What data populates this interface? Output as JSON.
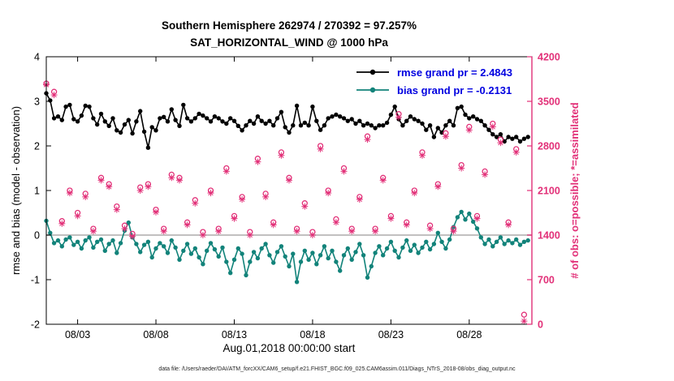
{
  "figure": {
    "title": "Southern Hemisphere 262974 / 270392 = 97.257%",
    "subtitle": "SAT_HORIZONTAL_WIND @ 1000 hPa",
    "xlabel": "Aug.01,2018 00:00:00 start",
    "ylabel_left": "rmse and bias (model - observation)",
    "ylabel_right": "# of obs: o=possible; *=assimilated",
    "caption": "data file: /Users/raeder/DAI/ATM_forcXX/CAM6_setup/f.e21.FHIST_BGC.f09_025.CAM6assim.011/Diags_NTrS_2018-08/obs_diag_output.nc",
    "legend_text_color": "#0000e0",
    "legend": [
      {
        "label": "rmse grand pr = 2.4843",
        "color": "#000000"
      },
      {
        "label": "bias grand pr = -0.2131",
        "color": "#12837a"
      }
    ]
  },
  "chart_data": {
    "type": "line",
    "title": "Southern Hemisphere 262974 / 270392 = 97.257%",
    "subtitle": "SAT_HORIZONTAL_WIND @ 1000 hPa",
    "grid": false,
    "legend_position": "top-right-inside",
    "x_axis": {
      "label": "Aug.01,2018 00:00:00 start",
      "start_day": 1,
      "end_day": 32,
      "ticks": [
        {
          "day": 3,
          "label": "08/03"
        },
        {
          "day": 8,
          "label": "08/08"
        },
        {
          "day": 13,
          "label": "08/13"
        },
        {
          "day": 18,
          "label": "08/18"
        },
        {
          "day": 23,
          "label": "08/23"
        },
        {
          "day": 28,
          "label": "08/28"
        }
      ]
    },
    "y_left": {
      "label": "rmse and bias (model - observation)",
      "min": -2,
      "max": 4,
      "ticks": [
        4,
        3,
        2,
        1,
        0,
        -1,
        -2
      ],
      "color": "#000000"
    },
    "y_right": {
      "label": "# of obs: o=possible; *=assimilated",
      "min": 0,
      "max": 4200,
      "ticks": [
        4200,
        3500,
        2800,
        2100,
        1400,
        700,
        0
      ],
      "color": "#e23078"
    },
    "zero_line": {
      "y": 0,
      "color": "#c2c0c0"
    },
    "series": [
      {
        "name": "rmse",
        "axis": "left",
        "color": "#000000",
        "marker": "filled-circle",
        "grand_mean": 2.4843,
        "x_start_day": 1,
        "x_step_days": 0.25,
        "values": [
          3.18,
          3.02,
          2.62,
          2.66,
          2.58,
          2.88,
          2.92,
          2.6,
          2.55,
          2.68,
          2.9,
          2.88,
          2.62,
          2.48,
          2.72,
          2.55,
          2.45,
          2.62,
          2.35,
          2.3,
          2.48,
          2.58,
          2.28,
          2.55,
          2.78,
          2.32,
          1.96,
          2.42,
          2.35,
          2.62,
          2.65,
          2.55,
          2.82,
          2.58,
          2.45,
          2.92,
          2.62,
          2.55,
          2.62,
          2.72,
          2.68,
          2.62,
          2.55,
          2.66,
          2.62,
          2.55,
          2.5,
          2.62,
          2.56,
          2.45,
          2.35,
          2.46,
          2.56,
          2.5,
          2.66,
          2.56,
          2.5,
          2.56,
          2.46,
          2.62,
          2.76,
          2.42,
          2.3,
          2.46,
          2.9,
          2.46,
          2.52,
          2.46,
          2.88,
          2.56,
          2.36,
          2.46,
          2.62,
          2.66,
          2.7,
          2.66,
          2.62,
          2.56,
          2.6,
          2.5,
          2.56,
          2.46,
          2.5,
          2.46,
          2.4,
          2.46,
          2.46,
          2.52,
          2.7,
          2.88,
          2.6,
          2.46,
          2.56,
          2.66,
          2.6,
          2.56,
          2.5,
          2.36,
          2.46,
          2.2,
          2.4,
          2.3,
          2.46,
          2.56,
          2.46,
          2.85,
          2.88,
          2.7,
          2.62,
          2.66,
          2.6,
          2.56,
          2.46,
          2.36,
          2.26,
          2.2,
          2.26,
          2.1,
          2.2,
          2.16,
          2.2,
          2.1,
          2.16,
          2.2
        ]
      },
      {
        "name": "bias",
        "axis": "left",
        "color": "#12837a",
        "marker": "filled-circle",
        "grand_mean": -0.2131,
        "x_start_day": 1,
        "x_step_days": 0.25,
        "values": [
          0.32,
          0.05,
          -0.18,
          -0.12,
          -0.25,
          -0.1,
          -0.05,
          -0.22,
          -0.15,
          -0.3,
          -0.12,
          -0.05,
          -0.28,
          -0.15,
          -0.1,
          -0.35,
          -0.2,
          -0.12,
          -0.4,
          -0.18,
          0.1,
          0.28,
          -0.05,
          -0.2,
          -0.38,
          -0.22,
          -0.15,
          -0.5,
          -0.3,
          -0.18,
          -0.25,
          -0.4,
          -0.12,
          -0.28,
          -0.55,
          -0.35,
          -0.2,
          -0.42,
          -0.3,
          -0.5,
          -0.65,
          -0.35,
          -0.18,
          -0.32,
          -0.48,
          -0.28,
          -0.6,
          -0.85,
          -0.55,
          -0.3,
          -0.42,
          -0.9,
          -0.6,
          -0.38,
          -0.52,
          -0.3,
          -0.2,
          -0.45,
          -0.62,
          -0.38,
          -0.25,
          -0.48,
          -0.7,
          -0.42,
          -1.05,
          -0.6,
          -0.35,
          -0.55,
          -0.4,
          -0.65,
          -0.45,
          -0.25,
          -0.52,
          -0.35,
          -0.6,
          -0.8,
          -0.45,
          -0.3,
          -0.55,
          -0.38,
          -0.2,
          -0.45,
          -0.95,
          -0.7,
          -0.4,
          -0.25,
          -0.45,
          -0.3,
          -0.15,
          -0.35,
          -0.5,
          -0.28,
          -0.12,
          -0.35,
          -0.22,
          -0.4,
          -0.28,
          -0.15,
          -0.32,
          -0.2,
          0.05,
          -0.15,
          -0.3,
          -0.1,
          0.18,
          0.4,
          0.52,
          0.35,
          0.48,
          0.3,
          0.15,
          -0.05,
          -0.2,
          -0.1,
          -0.25,
          -0.15,
          -0.05,
          -0.2,
          -0.12,
          -0.18,
          -0.1,
          -0.22,
          -0.15,
          -0.12
        ]
      },
      {
        "name": "possible_obs",
        "axis": "right",
        "color": "#e23078",
        "marker": "open-circle",
        "x_start_day": 1,
        "x_step_days": 0.5,
        "values": [
          3780,
          3650,
          1620,
          2100,
          1750,
          2050,
          1500,
          2300,
          2200,
          1850,
          1550,
          1420,
          2150,
          2200,
          1800,
          1500,
          2350,
          2300,
          1600,
          1950,
          1450,
          2100,
          1500,
          2450,
          1700,
          2000,
          1450,
          2600,
          2050,
          1600,
          2700,
          2300,
          1500,
          1900,
          1450,
          2800,
          2100,
          1650,
          2450,
          1500,
          2000,
          2950,
          1500,
          2300,
          1700,
          3300,
          1600,
          2100,
          2700,
          1550,
          2200,
          3000,
          1500,
          2500,
          3100,
          1700,
          2400,
          3150,
          2900,
          1600,
          2750,
          150
        ]
      },
      {
        "name": "assimilated_obs",
        "axis": "right",
        "color": "#e23078",
        "marker": "asterisk",
        "x_start_day": 1,
        "x_step_days": 0.5,
        "values": [
          3760,
          3600,
          1580,
          2060,
          1700,
          2000,
          1460,
          2260,
          2160,
          1800,
          1500,
          1380,
          2100,
          2160,
          1760,
          1460,
          2300,
          2260,
          1560,
          1900,
          1400,
          2060,
          1460,
          2400,
          1660,
          1960,
          1400,
          2550,
          2000,
          1560,
          2650,
          2260,
          1460,
          1850,
          1400,
          2750,
          2060,
          1600,
          2400,
          1460,
          1960,
          2900,
          1460,
          2260,
          1660,
          3250,
          1560,
          2060,
          2650,
          1500,
          2160,
          2950,
          1460,
          2450,
          3050,
          1660,
          2350,
          3100,
          2850,
          1560,
          2700,
          50
        ]
      }
    ]
  }
}
